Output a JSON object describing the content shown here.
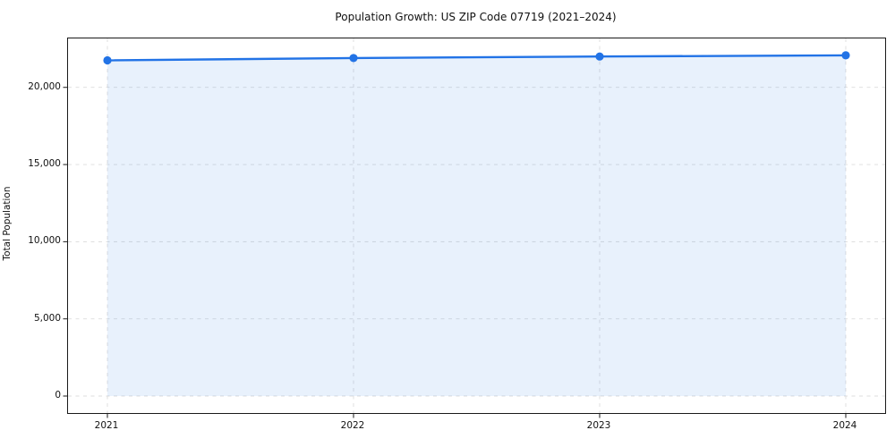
{
  "chart_data": {
    "type": "line",
    "title": "Population Growth: US ZIP Code 07719 (2021–2024)",
    "xlabel": "",
    "ylabel": "Total Population",
    "x": [
      2021,
      2022,
      2023,
      2024
    ],
    "x_tick_labels": [
      "2021",
      "2022",
      "2023",
      "2024"
    ],
    "series": [
      {
        "name": "Total Population",
        "values": [
          21750,
          21900,
          22000,
          22075
        ]
      }
    ],
    "y_ticks": [
      0,
      5000,
      10000,
      15000,
      20000
    ],
    "y_tick_labels": [
      "0",
      "5,000",
      "10,000",
      "15,000",
      "20,000"
    ],
    "xlim": [
      2020.84,
      2024.16
    ],
    "ylim": [
      -1100,
      23170
    ],
    "grid": true,
    "grid_style": "dashed",
    "legend_position": "none",
    "area_fill": true,
    "marker": "circle",
    "colors": {
      "line": "#2273e6",
      "marker": "#2273e6",
      "fill": "rgba(34,115,230,0.10)",
      "grid": "#d9d9d9",
      "spine": "#1a1a1a",
      "tick": "#1a1a1a",
      "text": "#111111",
      "background": "#ffffff"
    }
  }
}
